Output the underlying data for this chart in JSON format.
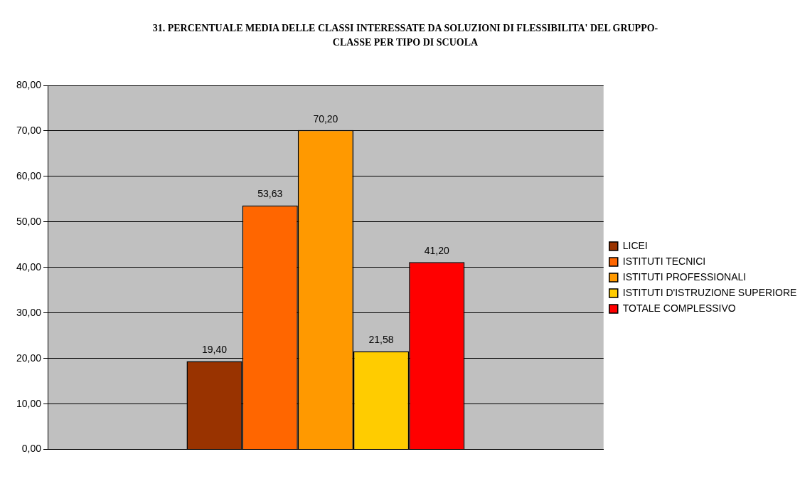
{
  "chart_data": {
    "type": "bar",
    "title": "31. PERCENTUALE MEDIA DELLE CLASSI INTERESSATE DA SOLUZIONI DI FLESSIBILITA' DEL GRUPPO-CLASSE PER TIPO DI SCUOLA",
    "categories": [
      null
    ],
    "series": [
      {
        "name": "LICEI",
        "color": "#993300",
        "values": [
          19.4
        ],
        "value_labels": [
          "19,40"
        ]
      },
      {
        "name": "ISTITUTI TECNICI",
        "color": "#ff6600",
        "values": [
          53.63
        ],
        "value_labels": [
          "53,63"
        ]
      },
      {
        "name": "ISTITUTI PROFESSIONALI",
        "color": "#ff9900",
        "values": [
          70.2
        ],
        "value_labels": [
          "70,20"
        ]
      },
      {
        "name": "ISTITUTI D'ISTRUZIONE SUPERIORE",
        "color": "#ffcc00",
        "values": [
          21.58
        ],
        "value_labels": [
          "21,58"
        ]
      },
      {
        "name": "TOTALE COMPLESSIVO",
        "color": "#ff0000",
        "values": [
          41.2
        ],
        "value_labels": [
          "41,20"
        ]
      }
    ],
    "ylim": [
      0,
      80
    ],
    "yticks": [
      {
        "value": 0,
        "label": "0,00"
      },
      {
        "value": 10,
        "label": "10,00"
      },
      {
        "value": 20,
        "label": "20,00"
      },
      {
        "value": 30,
        "label": "30,00"
      },
      {
        "value": 40,
        "label": "40,00"
      },
      {
        "value": 50,
        "label": "50,00"
      },
      {
        "value": 60,
        "label": "60,00"
      },
      {
        "value": 70,
        "label": "70,00"
      },
      {
        "value": 80,
        "label": "80,00"
      }
    ],
    "grid": "y",
    "legend": "right"
  }
}
